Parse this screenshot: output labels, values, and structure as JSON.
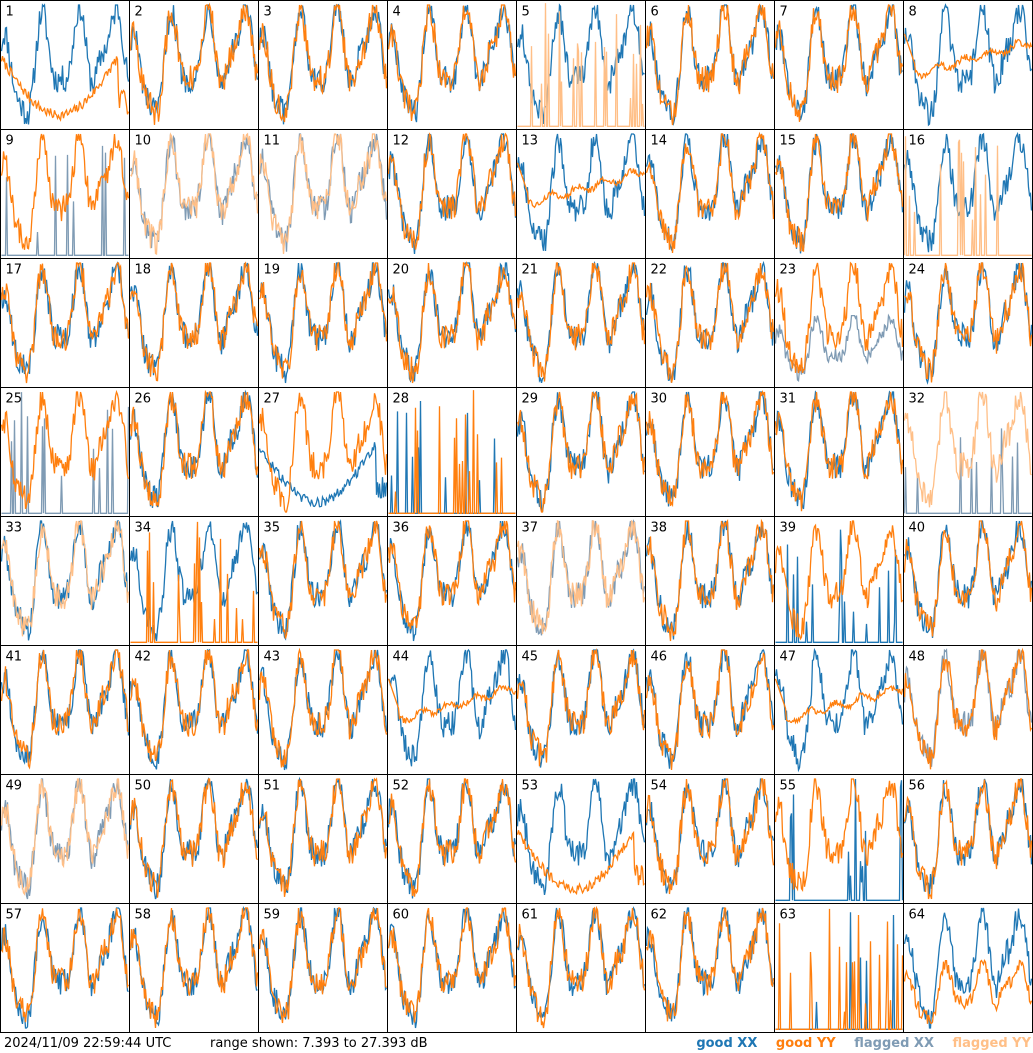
{
  "footer": {
    "timestamp": "2024/11/09 22:59:44 UTC",
    "range_text": "range shown: 7.393 to 27.393 dB"
  },
  "legend": {
    "good_xx": "good XX",
    "good_yy": "good YY",
    "flagged_xx": "flagged XX",
    "flagged_yy": "flagged YY"
  },
  "colors": {
    "good_xx": "#1f77b4",
    "good_yy": "#ff7f0e",
    "flagged_xx": "#7f9bb4",
    "flagged_yy": "#ffbf87"
  },
  "chart_data": {
    "type": "line",
    "ylim": [
      7.393,
      27.393
    ],
    "y_unit": "dB",
    "panels": [
      {
        "label": "1",
        "xx": "good",
        "yy": "good",
        "xx_shape": "normal",
        "yy_shape": "dip"
      },
      {
        "label": "2",
        "xx": "good",
        "yy": "good",
        "xx_shape": "normal",
        "yy_shape": "normal"
      },
      {
        "label": "3",
        "xx": "good",
        "yy": "good",
        "xx_shape": "normal",
        "yy_shape": "normal"
      },
      {
        "label": "4",
        "xx": "good",
        "yy": "good",
        "xx_shape": "normal",
        "yy_shape": "normal"
      },
      {
        "label": "5",
        "xx": "good",
        "yy": "flagged",
        "xx_shape": "normal",
        "yy_shape": "spikes"
      },
      {
        "label": "6",
        "xx": "good",
        "yy": "good",
        "xx_shape": "normal",
        "yy_shape": "normal"
      },
      {
        "label": "7",
        "xx": "good",
        "yy": "good",
        "xx_shape": "normal",
        "yy_shape": "normal"
      },
      {
        "label": "8",
        "xx": "good",
        "yy": "good",
        "xx_shape": "normal",
        "yy_shape": "smooth"
      },
      {
        "label": "9",
        "xx": "flagged",
        "yy": "good",
        "xx_shape": "spikes",
        "yy_shape": "normal"
      },
      {
        "label": "10",
        "xx": "flagged",
        "yy": "flagged",
        "xx_shape": "normal",
        "yy_shape": "normal"
      },
      {
        "label": "11",
        "xx": "flagged",
        "yy": "flagged",
        "xx_shape": "normal",
        "yy_shape": "normal"
      },
      {
        "label": "12",
        "xx": "good",
        "yy": "good",
        "xx_shape": "normal",
        "yy_shape": "normal"
      },
      {
        "label": "13",
        "xx": "good",
        "yy": "good",
        "xx_shape": "normal",
        "yy_shape": "smooth"
      },
      {
        "label": "14",
        "xx": "good",
        "yy": "good",
        "xx_shape": "normal",
        "yy_shape": "normal"
      },
      {
        "label": "15",
        "xx": "good",
        "yy": "good",
        "xx_shape": "normal",
        "yy_shape": "normal"
      },
      {
        "label": "16",
        "xx": "good",
        "yy": "flagged",
        "xx_shape": "normal",
        "yy_shape": "spikes"
      },
      {
        "label": "17",
        "xx": "good",
        "yy": "good",
        "xx_shape": "normal",
        "yy_shape": "normal"
      },
      {
        "label": "18",
        "xx": "good",
        "yy": "good",
        "xx_shape": "normal",
        "yy_shape": "normal"
      },
      {
        "label": "19",
        "xx": "good",
        "yy": "good",
        "xx_shape": "normal",
        "yy_shape": "normal"
      },
      {
        "label": "20",
        "xx": "good",
        "yy": "good",
        "xx_shape": "normal",
        "yy_shape": "normal"
      },
      {
        "label": "21",
        "xx": "good",
        "yy": "good",
        "xx_shape": "normal",
        "yy_shape": "normal"
      },
      {
        "label": "22",
        "xx": "good",
        "yy": "good",
        "xx_shape": "normal",
        "yy_shape": "normal"
      },
      {
        "label": "23",
        "xx": "flagged",
        "yy": "good",
        "xx_shape": "low",
        "yy_shape": "normal"
      },
      {
        "label": "24",
        "xx": "good",
        "yy": "good",
        "xx_shape": "normal",
        "yy_shape": "normal"
      },
      {
        "label": "25",
        "xx": "flagged",
        "yy": "good",
        "xx_shape": "spikes",
        "yy_shape": "normal"
      },
      {
        "label": "26",
        "xx": "good",
        "yy": "good",
        "xx_shape": "normal",
        "yy_shape": "normal"
      },
      {
        "label": "27",
        "xx": "good",
        "yy": "good",
        "xx_shape": "dip",
        "yy_shape": "normal"
      },
      {
        "label": "28",
        "xx": "good",
        "yy": "good",
        "xx_shape": "spikes",
        "yy_shape": "spikes"
      },
      {
        "label": "29",
        "xx": "good",
        "yy": "good",
        "xx_shape": "normal",
        "yy_shape": "normal"
      },
      {
        "label": "30",
        "xx": "good",
        "yy": "good",
        "xx_shape": "normal",
        "yy_shape": "normal"
      },
      {
        "label": "31",
        "xx": "good",
        "yy": "good",
        "xx_shape": "normal",
        "yy_shape": "normal"
      },
      {
        "label": "32",
        "xx": "flagged",
        "yy": "flagged",
        "xx_shape": "spikes",
        "yy_shape": "normal"
      },
      {
        "label": "33",
        "xx": "good",
        "yy": "flagged",
        "xx_shape": "normal",
        "yy_shape": "normal"
      },
      {
        "label": "34",
        "xx": "good",
        "yy": "good",
        "xx_shape": "normal",
        "yy_shape": "spikes"
      },
      {
        "label": "35",
        "xx": "good",
        "yy": "good",
        "xx_shape": "normal",
        "yy_shape": "normal"
      },
      {
        "label": "36",
        "xx": "good",
        "yy": "good",
        "xx_shape": "normal",
        "yy_shape": "normal"
      },
      {
        "label": "37",
        "xx": "flagged",
        "yy": "flagged",
        "xx_shape": "normal",
        "yy_shape": "normal"
      },
      {
        "label": "38",
        "xx": "good",
        "yy": "good",
        "xx_shape": "normal",
        "yy_shape": "normal"
      },
      {
        "label": "39",
        "xx": "good",
        "yy": "good",
        "xx_shape": "spikes",
        "yy_shape": "normal"
      },
      {
        "label": "40",
        "xx": "good",
        "yy": "good",
        "xx_shape": "normal",
        "yy_shape": "normal"
      },
      {
        "label": "41",
        "xx": "good",
        "yy": "good",
        "xx_shape": "normal",
        "yy_shape": "normal"
      },
      {
        "label": "42",
        "xx": "good",
        "yy": "good",
        "xx_shape": "normal",
        "yy_shape": "normal"
      },
      {
        "label": "43",
        "xx": "good",
        "yy": "good",
        "xx_shape": "normal",
        "yy_shape": "normal"
      },
      {
        "label": "44",
        "xx": "good",
        "yy": "good",
        "xx_shape": "normal",
        "yy_shape": "smooth"
      },
      {
        "label": "45",
        "xx": "good",
        "yy": "good",
        "xx_shape": "normal",
        "yy_shape": "normal"
      },
      {
        "label": "46",
        "xx": "good",
        "yy": "good",
        "xx_shape": "normal",
        "yy_shape": "normal"
      },
      {
        "label": "47",
        "xx": "good",
        "yy": "good",
        "xx_shape": "normal",
        "yy_shape": "smooth"
      },
      {
        "label": "48",
        "xx": "flagged",
        "yy": "good",
        "xx_shape": "normal",
        "yy_shape": "normal"
      },
      {
        "label": "49",
        "xx": "flagged",
        "yy": "flagged",
        "xx_shape": "normal",
        "yy_shape": "normal"
      },
      {
        "label": "50",
        "xx": "good",
        "yy": "good",
        "xx_shape": "normal",
        "yy_shape": "normal"
      },
      {
        "label": "51",
        "xx": "good",
        "yy": "good",
        "xx_shape": "normal",
        "yy_shape": "normal"
      },
      {
        "label": "52",
        "xx": "good",
        "yy": "good",
        "xx_shape": "normal",
        "yy_shape": "normal"
      },
      {
        "label": "53",
        "xx": "good",
        "yy": "good",
        "xx_shape": "normal",
        "yy_shape": "dip"
      },
      {
        "label": "54",
        "xx": "good",
        "yy": "good",
        "xx_shape": "normal",
        "yy_shape": "normal"
      },
      {
        "label": "55",
        "xx": "good",
        "yy": "good",
        "xx_shape": "spikes",
        "yy_shape": "normal"
      },
      {
        "label": "56",
        "xx": "good",
        "yy": "good",
        "xx_shape": "normal",
        "yy_shape": "normal"
      },
      {
        "label": "57",
        "xx": "good",
        "yy": "good",
        "xx_shape": "normal",
        "yy_shape": "normal"
      },
      {
        "label": "58",
        "xx": "good",
        "yy": "good",
        "xx_shape": "normal",
        "yy_shape": "normal"
      },
      {
        "label": "59",
        "xx": "good",
        "yy": "good",
        "xx_shape": "normal",
        "yy_shape": "normal"
      },
      {
        "label": "60",
        "xx": "good",
        "yy": "good",
        "xx_shape": "normal",
        "yy_shape": "normal"
      },
      {
        "label": "61",
        "xx": "good",
        "yy": "good",
        "xx_shape": "normal",
        "yy_shape": "normal"
      },
      {
        "label": "62",
        "xx": "good",
        "yy": "good",
        "xx_shape": "normal",
        "yy_shape": "normal"
      },
      {
        "label": "63",
        "xx": "good",
        "yy": "good",
        "xx_shape": "spikes",
        "yy_shape": "spikes"
      },
      {
        "label": "64",
        "xx": "good",
        "yy": "good",
        "xx_shape": "normal",
        "yy_shape": "low"
      }
    ]
  }
}
